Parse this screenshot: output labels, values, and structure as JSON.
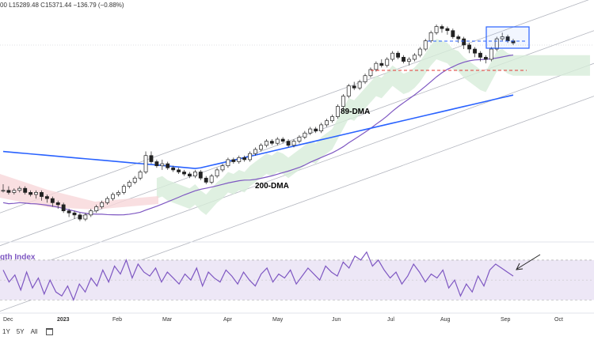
{
  "header": {
    "ohlc_text": "00  L15289.48  C15371.44  −136.79 (−0.88%)"
  },
  "toolbar": {
    "buttons": [
      "1Y",
      "5Y",
      "All"
    ]
  },
  "chart_data": {
    "type": "candlestick",
    "x_axis_labels": [
      "Dec",
      "2023",
      "Feb",
      "Mar",
      "Apr",
      "May",
      "Jun",
      "Jul",
      "Aug",
      "Sep",
      "Oct"
    ],
    "annotations": {
      "ma89_label": "89-DMA",
      "ma200_label": "200-DMA",
      "rsi_title": "gth Index"
    },
    "colors": {
      "ma89": "#7e57c2",
      "ma200": "#2962ff",
      "channel": "#b2b5be",
      "cloud_green": "#d7ecd9",
      "cloud_red": "#f8d7da",
      "support_red": "#e53935",
      "resistance_blue": "#2962ff",
      "rsi_line": "#7e57c2",
      "rsi_band": "#ede7f6"
    },
    "candles": [
      [
        -1,
        -1,
        2,
        -2
      ],
      [
        -1,
        -2,
        1,
        -3
      ],
      [
        -2,
        -1,
        0,
        -3
      ],
      [
        -1,
        0,
        1,
        -2
      ],
      [
        0,
        -2,
        1,
        -3
      ],
      [
        -2,
        -3,
        -1,
        -4
      ],
      [
        -3,
        -2,
        -1,
        -5
      ],
      [
        -2,
        -4,
        -1,
        -6
      ],
      [
        -4,
        -5,
        -3,
        -7
      ],
      [
        -5,
        -7,
        -4,
        -9
      ],
      [
        -7,
        -8,
        -6,
        -10
      ],
      [
        -8,
        -11,
        -7,
        -12
      ],
      [
        -11,
        -12,
        -10,
        -14
      ],
      [
        -12,
        -13,
        -11,
        -15
      ],
      [
        -13,
        -15,
        -12,
        -16
      ],
      [
        -15,
        -13,
        -12,
        -16
      ],
      [
        -13,
        -11,
        -10,
        -14
      ],
      [
        -11,
        -9,
        -8,
        -12
      ],
      [
        -9,
        -7,
        -6,
        -10
      ],
      [
        -7,
        -5,
        -4,
        -8
      ],
      [
        -5,
        -3,
        -2,
        -6
      ],
      [
        -3,
        -2,
        -1,
        -4
      ],
      [
        -2,
        1,
        2,
        -3
      ],
      [
        1,
        3,
        4,
        0
      ],
      [
        3,
        5,
        6,
        2
      ],
      [
        5,
        8,
        9,
        4
      ],
      [
        8,
        16,
        18,
        7
      ],
      [
        16,
        13,
        18,
        12
      ],
      [
        13,
        11,
        14,
        10
      ],
      [
        11,
        12,
        14,
        9
      ],
      [
        12,
        10,
        13,
        9
      ],
      [
        10,
        9,
        11,
        8
      ],
      [
        9,
        8,
        10,
        7
      ],
      [
        8,
        7,
        9,
        6
      ],
      [
        7,
        6,
        8,
        5
      ],
      [
        6,
        8,
        9,
        5
      ],
      [
        8,
        5,
        9,
        4
      ],
      [
        5,
        3,
        6,
        2
      ],
      [
        3,
        6,
        7,
        2
      ],
      [
        6,
        9,
        10,
        5
      ],
      [
        9,
        11,
        12,
        8
      ],
      [
        11,
        14,
        15,
        10
      ],
      [
        14,
        13,
        15,
        12
      ],
      [
        13,
        15,
        16,
        12
      ],
      [
        15,
        14,
        16,
        13
      ],
      [
        14,
        17,
        18,
        13
      ],
      [
        17,
        19,
        20,
        16
      ],
      [
        19,
        21,
        22,
        18
      ],
      [
        21,
        23,
        24,
        20
      ],
      [
        23,
        22,
        24,
        21
      ],
      [
        22,
        24,
        25,
        21
      ],
      [
        24,
        23,
        25,
        22
      ],
      [
        23,
        21,
        24,
        20
      ],
      [
        21,
        23,
        24,
        20
      ],
      [
        23,
        25,
        26,
        22
      ],
      [
        25,
        27,
        28,
        24
      ],
      [
        27,
        29,
        30,
        26
      ],
      [
        29,
        28,
        30,
        27
      ],
      [
        28,
        31,
        32,
        27
      ],
      [
        31,
        33,
        34,
        30
      ],
      [
        33,
        35,
        36,
        32
      ],
      [
        35,
        40,
        41,
        34
      ],
      [
        40,
        45,
        46,
        39
      ],
      [
        45,
        50,
        51,
        44
      ],
      [
        50,
        49,
        52,
        48
      ],
      [
        49,
        52,
        53,
        48
      ],
      [
        52,
        55,
        56,
        51
      ],
      [
        55,
        58,
        59,
        54
      ],
      [
        58,
        61,
        62,
        57
      ],
      [
        61,
        60,
        63,
        59
      ],
      [
        60,
        63,
        64,
        59
      ],
      [
        63,
        66,
        67,
        62
      ],
      [
        66,
        64,
        67,
        63
      ],
      [
        64,
        62,
        65,
        61
      ],
      [
        62,
        63,
        64,
        60
      ],
      [
        63,
        65,
        66,
        62
      ],
      [
        65,
        68,
        69,
        64
      ],
      [
        68,
        72,
        73,
        67
      ],
      [
        72,
        76,
        77,
        71
      ],
      [
        76,
        79,
        80,
        75
      ],
      [
        79,
        78,
        80,
        76
      ],
      [
        78,
        77,
        79,
        75
      ],
      [
        77,
        74,
        78,
        73
      ],
      [
        74,
        73,
        75,
        71
      ],
      [
        73,
        70,
        74,
        68
      ],
      [
        70,
        68,
        71,
        66
      ],
      [
        68,
        66,
        69,
        64
      ],
      [
        66,
        64,
        67,
        62
      ],
      [
        64,
        63,
        65,
        61
      ],
      [
        63,
        68,
        69,
        62
      ],
      [
        68,
        73,
        74,
        67
      ],
      [
        73,
        74,
        76,
        72
      ],
      [
        74,
        72,
        75,
        71
      ],
      [
        72,
        71,
        73,
        70
      ]
    ],
    "price_range": [
      -20,
      85
    ],
    "rsi": [
      60,
      48,
      55,
      40,
      58,
      42,
      52,
      36,
      50,
      38,
      34,
      44,
      30,
      46,
      38,
      52,
      44,
      60,
      48,
      64,
      56,
      70,
      52,
      66,
      58,
      54,
      62,
      48,
      58,
      52,
      46,
      56,
      50,
      62,
      44,
      58,
      52,
      48,
      60,
      54,
      46,
      58,
      50,
      44,
      56,
      62,
      48,
      56,
      52,
      60,
      46,
      54,
      62,
      56,
      50,
      64,
      58,
      54,
      68,
      62,
      74,
      70,
      78,
      64,
      70,
      60,
      52,
      58,
      46,
      54,
      66,
      58,
      48,
      56,
      52,
      60,
      42,
      50,
      34,
      46,
      38,
      54,
      44,
      60,
      66,
      62,
      58,
      54
    ],
    "rsi_range": [
      20,
      85
    ]
  }
}
